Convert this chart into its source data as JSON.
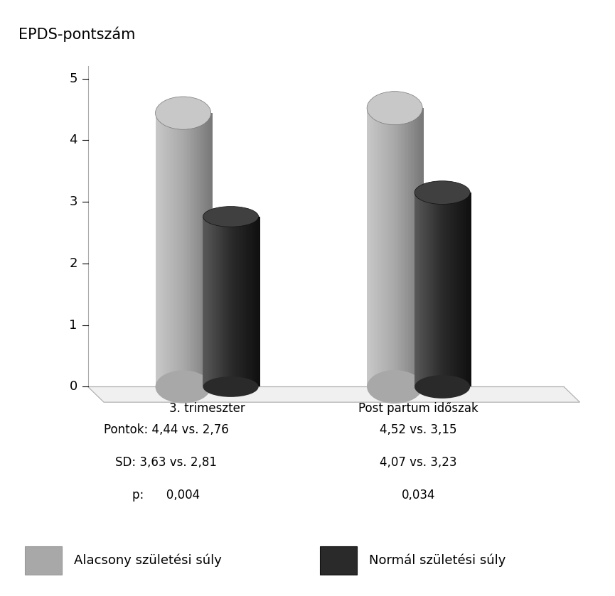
{
  "title": "EPDS-pontszám",
  "groups": [
    "3. trimeszter",
    "Post partum időszak"
  ],
  "values_gray": [
    4.44,
    4.52
  ],
  "values_dark": [
    2.76,
    3.15
  ],
  "yticks": [
    0,
    1,
    2,
    3,
    4,
    5
  ],
  "ylim": [
    0,
    5
  ],
  "annotations_left": [
    "Pontok: 4,44 vs. 2,76",
    "SD: 3,63 vs. 2,81",
    "p:      0,004"
  ],
  "annotations_right": [
    "4,52 vs. 3,15",
    "4,07 vs. 3,23",
    "0,034"
  ],
  "legend_labels": [
    "Alacsony születési súly",
    "Normál születési súly"
  ],
  "gray_light": "#c8c8c8",
  "gray_mid": "#a8a8a8",
  "gray_dark": "#787878",
  "dark_light": "#585858",
  "dark_mid": "#2a2a2a",
  "dark_dark": "#101010",
  "background_color": "#ffffff",
  "axis_color": "#aaaaaa",
  "floor_color": "#e8e8e8"
}
